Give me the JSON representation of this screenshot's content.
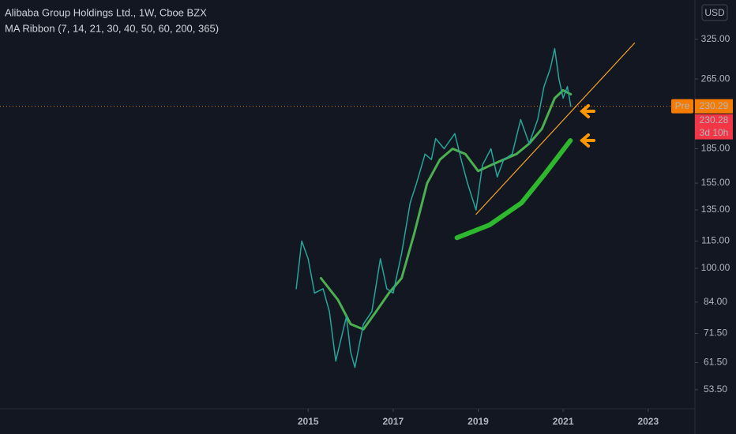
{
  "chart_data": {
    "type": "line",
    "title": "Alibaba Group Holdings Ltd., 1W, Cboe BZX",
    "indicator": "MA Ribbon (7, 14, 21, 30, 40, 50, 60, 200, 365)",
    "currency": "USD",
    "log_scale": true,
    "xlim": [
      2007.75,
      2024.1
    ],
    "xticks": [
      2015,
      2017,
      2019,
      2021,
      2023
    ],
    "ylim": [
      48.5,
      398
    ],
    "yticks": [
      {
        "value": 325,
        "label": "325.00"
      },
      {
        "value": 265,
        "label": "265.00"
      },
      {
        "value": 185,
        "label": "185.00"
      },
      {
        "value": 155,
        "label": "155.00"
      },
      {
        "value": 135,
        "label": "135.00"
      },
      {
        "value": 115,
        "label": "115.00"
      },
      {
        "value": 100,
        "label": "100.00"
      },
      {
        "value": 84,
        "label": "84.00"
      },
      {
        "value": 71.5,
        "label": "71.50"
      },
      {
        "value": 61.5,
        "label": "61.50"
      },
      {
        "value": 53.5,
        "label": "53.50"
      }
    ],
    "price": {
      "color": "#26a69a",
      "x": [
        2014.72,
        2014.85,
        2015.0,
        2015.15,
        2015.35,
        2015.5,
        2015.65,
        2015.75,
        2015.9,
        2016.0,
        2016.1,
        2016.3,
        2016.5,
        2016.7,
        2016.85,
        2017.0,
        2017.2,
        2017.4,
        2017.55,
        2017.75,
        2017.9,
        2018.0,
        2018.2,
        2018.45,
        2018.6,
        2018.75,
        2018.95,
        2019.1,
        2019.3,
        2019.45,
        2019.6,
        2019.8,
        2020.0,
        2020.2,
        2020.4,
        2020.55,
        2020.7,
        2020.8,
        2020.9,
        2021.0,
        2021.1,
        2021.18
      ],
      "values": [
        90,
        115,
        105,
        88,
        90,
        80,
        62,
        68,
        78,
        65,
        60,
        75,
        80,
        105,
        90,
        88,
        108,
        140,
        155,
        180,
        175,
        195,
        185,
        200,
        175,
        155,
        135,
        170,
        185,
        160,
        175,
        180,
        215,
        190,
        215,
        255,
        280,
        310,
        265,
        240,
        255,
        230.28
      ]
    },
    "ma": {
      "color": "#4caf50",
      "x": [
        2015.3,
        2015.7,
        2016.0,
        2016.3,
        2016.6,
        2016.9,
        2017.2,
        2017.5,
        2017.8,
        2018.1,
        2018.4,
        2018.7,
        2019.0,
        2019.3,
        2019.6,
        2019.9,
        2020.2,
        2020.5,
        2020.8,
        2021.0,
        2021.18
      ],
      "values": [
        95,
        85,
        75,
        73,
        80,
        88,
        95,
        120,
        155,
        175,
        185,
        180,
        165,
        170,
        175,
        180,
        190,
        205,
        240,
        250,
        245
      ]
    },
    "trend_line": {
      "color": "#f5a623",
      "x": [
        2018.95,
        2022.68
      ],
      "values": [
        132,
        319
      ]
    },
    "brush": {
      "color": "#2eb82e",
      "x": [
        2018.5,
        2019.27,
        2020.02,
        2020.58,
        2021.17
      ],
      "values": [
        117,
        125,
        140,
        163,
        193
      ]
    },
    "pre_market": {
      "label": "Pre",
      "value": 230.29
    },
    "last": {
      "value": 230.28,
      "countdown": "3d 10h"
    }
  }
}
